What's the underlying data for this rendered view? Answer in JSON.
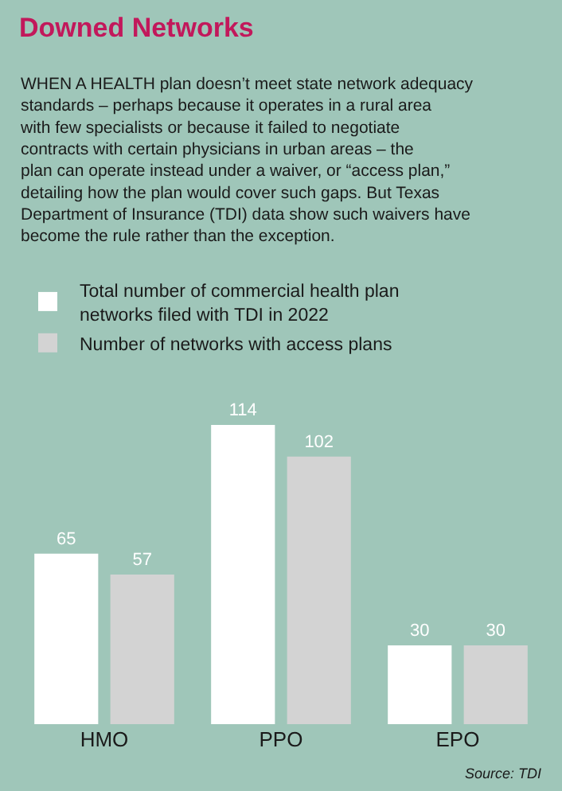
{
  "chart_data": {
    "type": "bar",
    "title": "Downed Networks",
    "subtitle": "WHEN A HEALTH plan doesn’t meet state network adequacy standards – perhaps because it operates in a rural area with few specialists or because it failed to negotiate contracts with certain physicians in urban areas – the plan can operate instead under a waiver, or “access plan,” detailing how the plan would cover such gaps. But Texas Department of Insurance (TDI) data show such waivers have become the rule rather than the exception.",
    "categories": [
      "HMO",
      "PPO",
      "EPO"
    ],
    "series": [
      {
        "name": "Total number of commercial health plan networks filed with TDI in 2022",
        "color": "#ffffff",
        "values": [
          65,
          114,
          30
        ]
      },
      {
        "name": "Number of networks with access plans",
        "color": "#d3d3d3",
        "values": [
          57,
          102,
          30
        ]
      }
    ],
    "data_labels": true,
    "legend": "top left",
    "grid": false,
    "annotations": [
      "Source: TDI"
    ]
  }
}
